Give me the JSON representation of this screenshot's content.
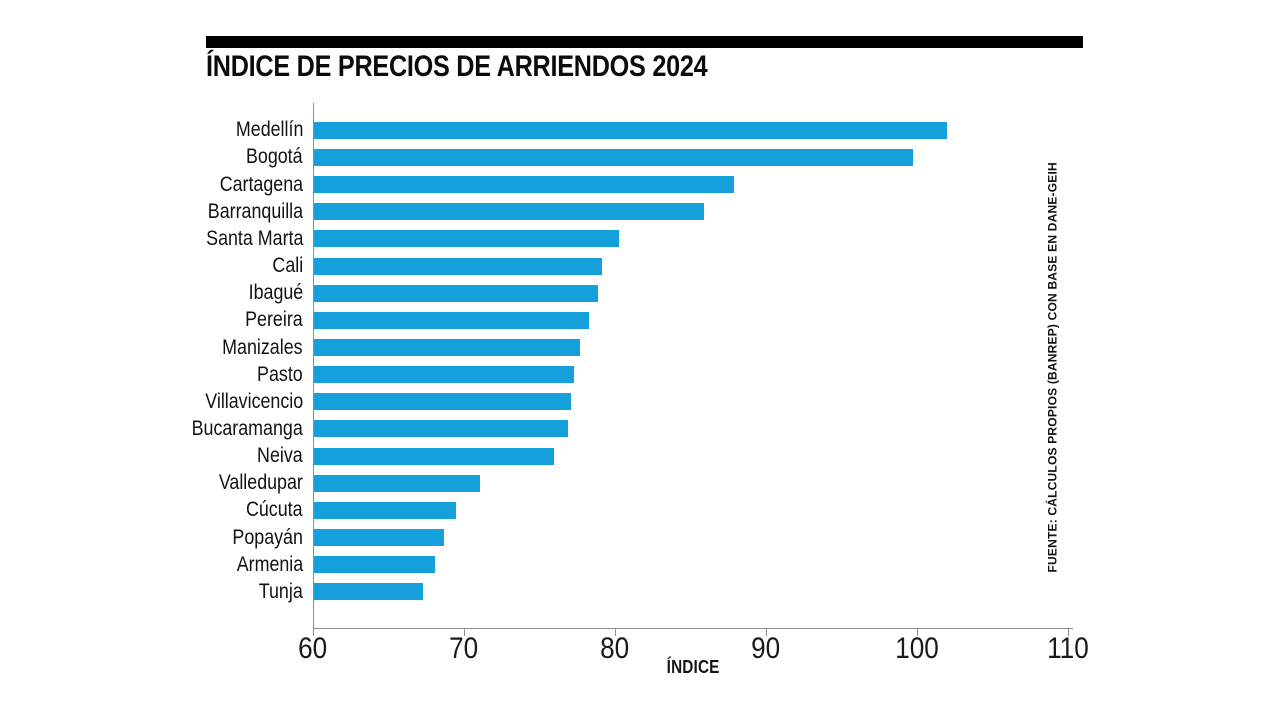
{
  "header": {
    "title": "ÍNDICE DE PRECIOS DE ARRIENDOS 2024"
  },
  "source_note": "FUENTE: CÁLCULOS PROPIOS (BANREP) CON BASE EN DANE-GEIH",
  "chart_data": {
    "type": "bar",
    "orientation": "horizontal",
    "title": "ÍNDICE DE PRECIOS DE ARRIENDOS 2024",
    "xlabel": "ÍNDICE",
    "xlim": [
      60,
      110
    ],
    "xticks": [
      60,
      70,
      80,
      90,
      100,
      110
    ],
    "grid": false,
    "legend_position": "none",
    "categories": [
      "Medellín",
      "Bogotá",
      "Cartagena",
      "Barranquilla",
      "Santa Marta",
      "Cali",
      "Ibagué",
      "Pereira",
      "Manizales",
      "Pasto",
      "Villavicencio",
      "Bucaramanga",
      "Neiva",
      "Valledupar",
      "Cúcuta",
      "Popayán",
      "Armenia",
      "Tunja"
    ],
    "values": [
      101.9,
      99.7,
      87.8,
      85.8,
      80.2,
      79.1,
      78.8,
      78.2,
      77.6,
      77.2,
      77.0,
      76.8,
      75.9,
      71.0,
      69.4,
      68.6,
      68.0,
      67.2
    ],
    "bar_color": "#16A0DB",
    "axis_color": "#8f8f8f",
    "text_color": "#121212"
  }
}
